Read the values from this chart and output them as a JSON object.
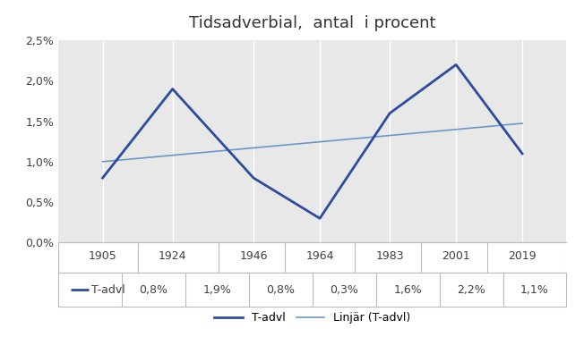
{
  "title": "Tidsadverbial,  antal  i procent",
  "years": [
    1905,
    1924,
    1946,
    1964,
    1983,
    2001,
    2019
  ],
  "values": [
    0.008,
    0.019,
    0.008,
    0.003,
    0.016,
    0.022,
    0.011
  ],
  "labels": [
    "0,8%",
    "1,9%",
    "0,8%",
    "0,3%",
    "1,6%",
    "2,2%",
    "1,1%"
  ],
  "line_color": "#2E4C9E",
  "trend_color": "#6B97C8",
  "plot_bg": "#E8E8E8",
  "white_bg": "#FFFFFF",
  "grid_color": "#FFFFFF",
  "border_color": "#BBBBBB",
  "text_color": "#404040",
  "ylim": [
    0.0,
    0.025
  ],
  "yticks": [
    0.0,
    0.005,
    0.01,
    0.015,
    0.02,
    0.025
  ],
  "ytick_labels": [
    "0,0%",
    "0,5%",
    "1,0%",
    "1,5%",
    "2,0%",
    "2,5%"
  ],
  "legend_main": "T-advl",
  "legend_trend": "Linjär (T-advl)",
  "table_header": "T-advl",
  "title_fontsize": 13,
  "tick_fontsize": 9,
  "table_fontsize": 9,
  "legend_fontsize": 9
}
